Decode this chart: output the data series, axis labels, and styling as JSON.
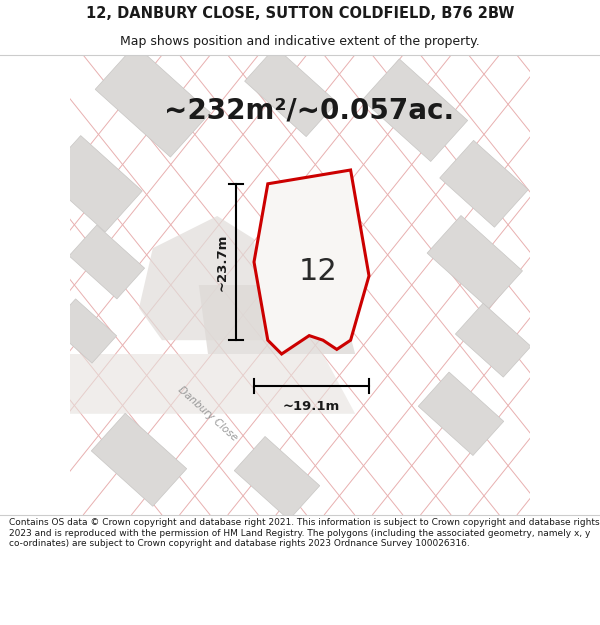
{
  "title_line1": "12, DANBURY CLOSE, SUTTON COLDFIELD, B76 2BW",
  "title_line2": "Map shows position and indicative extent of the property.",
  "area_text": "~232m²/~0.057ac.",
  "label_number": "12",
  "dim_vertical": "~23.7m",
  "dim_horizontal": "~19.1m",
  "road_label": "Danbury Close",
  "footer_text": "Contains OS data © Crown copyright and database right 2021. This information is subject to Crown copyright and database rights 2023 and is reproduced with the permission of HM Land Registry. The polygons (including the associated geometry, namely x, y co-ordinates) are subject to Crown copyright and database rights 2023 Ordnance Survey 100026316.",
  "map_bg": "#f2f0ee",
  "plot_fill": "#f8f6f4",
  "plot_edge_color": "#cc0000",
  "building_fill": "#dbd9d7",
  "building_edge": "#c8c6c4",
  "pink_line_color": "#e8b0b0",
  "black_color": "#1a1a1a",
  "white_color": "#ffffff",
  "road_fill": "#e6e2de",
  "title_fs": 10.5,
  "subtitle_fs": 9,
  "area_fs": 20,
  "label_fs": 22,
  "dim_fs": 9.5,
  "footer_fs": 6.5
}
